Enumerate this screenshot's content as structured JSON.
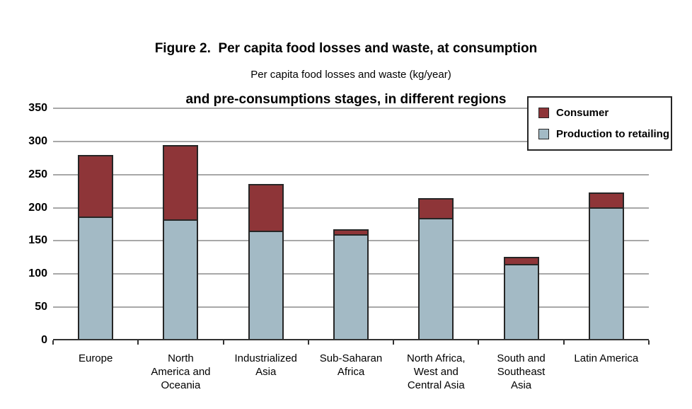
{
  "figure": {
    "title_lines": [
      "Figure 2.  Per capita food losses and waste, at consumption",
      "and pre-consumptions stages, in different regions"
    ],
    "axis_title": "Per capita food losses and waste (kg/year)"
  },
  "legend": {
    "items": [
      {
        "label": "Consumer",
        "color": "#8e3538"
      },
      {
        "label": "Production to retailing",
        "color": "#a3bac5"
      }
    ]
  },
  "colors": {
    "consumer": "#8e3538",
    "production": "#a3bac5",
    "bar_border": "#262626",
    "gridline": "#a8a8a8",
    "axis": "#333333"
  },
  "chart_data": {
    "type": "bar",
    "stacked": true,
    "title": "Figure 2. Per capita food losses and waste, at consumption and pre-consumptions stages, in different regions",
    "ylabel": "Per capita food losses and waste (kg/year)",
    "xlabel": "",
    "grid": true,
    "legend_position": "top-right",
    "ylim": [
      0,
      350
    ],
    "ytick_step": 50,
    "yticks": [
      0,
      50,
      100,
      150,
      200,
      250,
      300,
      350
    ],
    "categories": [
      "Europe",
      "North America and Oceania",
      "Industrialized Asia",
      "Sub-Saharan Africa",
      "North Africa, West and Central Asia",
      "South and Southeast Asia",
      "Latin America"
    ],
    "category_label_lines": [
      [
        "Europe"
      ],
      [
        "North",
        "America and",
        "Oceania"
      ],
      [
        "Industrialized",
        "Asia"
      ],
      [
        "Sub-Saharan",
        "Africa"
      ],
      [
        "North Africa,",
        "West and",
        "Central Asia"
      ],
      [
        "South and",
        "Southeast",
        "Asia"
      ],
      [
        "Latin America"
      ]
    ],
    "series": [
      {
        "name": "Production to retailing",
        "color": "#a3bac5",
        "values": [
          185,
          180,
          163,
          158,
          182,
          113,
          198
        ]
      },
      {
        "name": "Consumer",
        "color": "#8e3538",
        "values": [
          95,
          115,
          73,
          9,
          33,
          13,
          25
        ]
      }
    ],
    "totals": [
      280,
      295,
      236,
      167,
      215,
      126,
      223
    ]
  }
}
